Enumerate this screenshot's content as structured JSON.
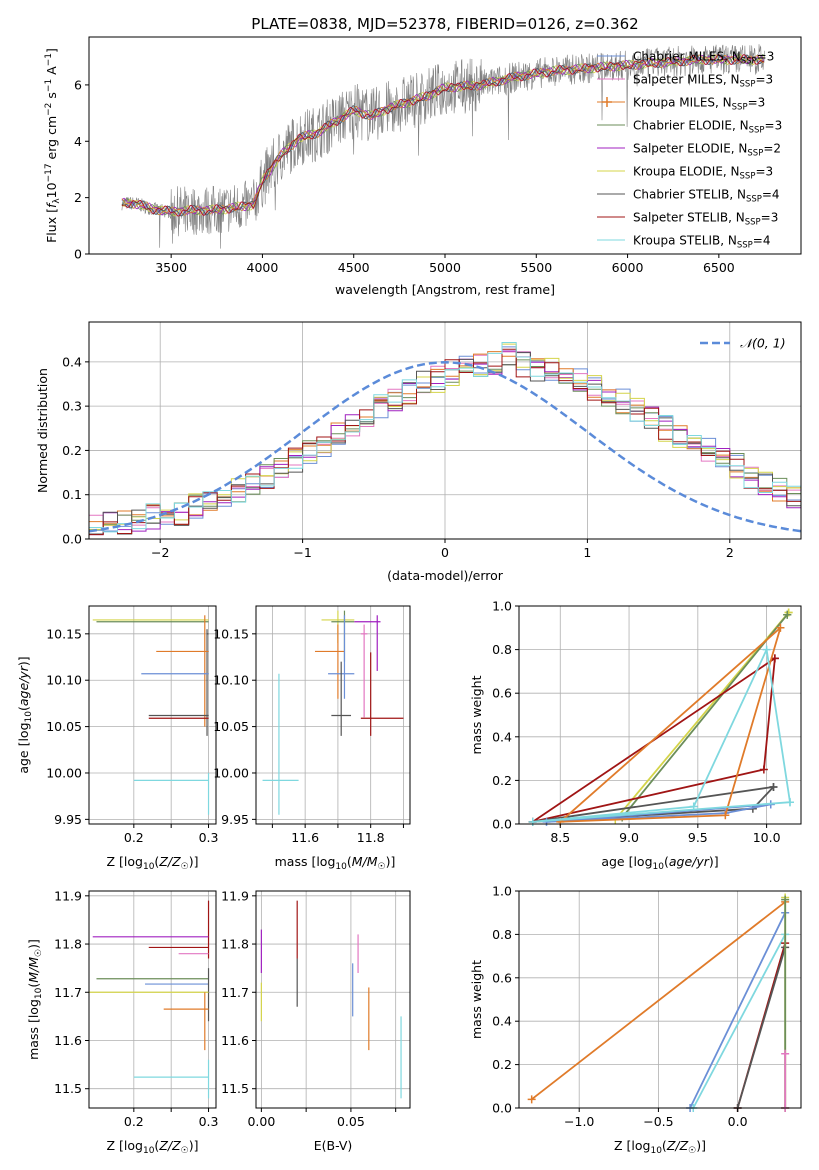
{
  "title": "PLATE=0838, MJD=52378, FIBERID=0126, z=0.362",
  "colors": {
    "chabrier_miles": "#6b8fd6",
    "salpeter_miles": "#e377c2",
    "kroupa_miles": "#e07b2a",
    "chabrier_elodie": "#6b8e5a",
    "salpeter_elodie": "#a020c0",
    "kroupa_elodie": "#d4d44a",
    "chabrier_stelib": "#555555",
    "salpeter_stelib": "#a01515",
    "kroupa_stelib": "#7fd8df",
    "data": "#808080",
    "gaussian": "#5b8bd9"
  },
  "chart_data": [
    {
      "id": "spectrum",
      "type": "line",
      "xlabel": "wavelength [Angstrom, rest frame]",
      "ylabel": "Flux [f_λ 10^-17 erg cm^-2 s^-1 A^-1]",
      "xlim": [
        3050,
        6950
      ],
      "ylim": [
        0,
        7.7
      ],
      "xticks": [
        "3500",
        "4000",
        "4500",
        "5000",
        "5500",
        "6000",
        "6500"
      ],
      "yticks": [
        "0",
        "2",
        "4",
        "6"
      ],
      "legend_position": "top-right",
      "model_continuum": {
        "x": [
          3230,
          3300,
          3400,
          3500,
          3600,
          3700,
          3800,
          3900,
          3950,
          4000,
          4100,
          4200,
          4300,
          4400,
          4500,
          4600,
          4700,
          4800,
          4900,
          5000,
          5200,
          5400,
          5600,
          5800,
          6000,
          6200,
          6400,
          6600,
          6750
        ],
        "y": [
          1.8,
          1.8,
          1.6,
          1.5,
          1.55,
          1.55,
          1.6,
          1.7,
          1.75,
          2.6,
          3.5,
          4.1,
          4.3,
          4.7,
          5.1,
          4.9,
          5.2,
          5.4,
          5.6,
          5.9,
          6.0,
          6.3,
          6.5,
          6.6,
          6.7,
          6.8,
          6.9,
          6.9,
          6.9
        ]
      },
      "legend": [
        {
          "label": "Chabrier MILES, N",
          "sub": "SSP",
          "suffix": "=3",
          "color_key": "chabrier_miles",
          "marker": false
        },
        {
          "label": "Salpeter MILES, N",
          "sub": "SSP",
          "suffix": "=3",
          "color_key": "salpeter_miles",
          "marker": false
        },
        {
          "label": "Kroupa MILES, N",
          "sub": "SSP",
          "suffix": "=3",
          "color_key": "kroupa_miles",
          "marker": true
        },
        {
          "label": "Chabrier ELODIE, N",
          "sub": "SSP",
          "suffix": "=3",
          "color_key": "chabrier_elodie",
          "marker": false
        },
        {
          "label": "Salpeter ELODIE, N",
          "sub": "SSP",
          "suffix": "=2",
          "color_key": "salpeter_elodie",
          "marker": false
        },
        {
          "label": "Kroupa ELODIE, N",
          "sub": "SSP",
          "suffix": "=3",
          "color_key": "kroupa_elodie",
          "marker": false
        },
        {
          "label": "Chabrier STELIB, N",
          "sub": "SSP",
          "suffix": "=4",
          "color_key": "chabrier_stelib",
          "marker": false
        },
        {
          "label": "Salpeter STELIB, N",
          "sub": "SSP",
          "suffix": "=3",
          "color_key": "salpeter_stelib",
          "marker": false
        },
        {
          "label": "Kroupa STELIB, N",
          "sub": "SSP",
          "suffix": "=4",
          "color_key": "kroupa_stelib",
          "marker": false
        }
      ]
    },
    {
      "id": "residuals",
      "type": "histogram",
      "xlabel": "(data-model)/error",
      "ylabel": "Normed distribution",
      "xlim": [
        -2.5,
        2.5
      ],
      "ylim": [
        0,
        0.49
      ],
      "xticks": [
        "−2",
        "−1",
        "0",
        "1",
        "2"
      ],
      "yticks": [
        "0.0",
        "0.1",
        "0.2",
        "0.3",
        "0.4"
      ],
      "grid": true,
      "legend_position": "top-right",
      "legend": "𝒩(0, 1)",
      "bin_width": 0.1,
      "base_density": [
        0.024,
        0.026,
        0.032,
        0.036,
        0.045,
        0.05,
        0.055,
        0.06,
        0.075,
        0.085,
        0.095,
        0.11,
        0.125,
        0.14,
        0.16,
        0.18,
        0.2,
        0.215,
        0.235,
        0.26,
        0.28,
        0.3,
        0.315,
        0.33,
        0.35,
        0.36,
        0.375,
        0.385,
        0.39,
        0.4,
        0.42,
        0.395,
        0.385,
        0.38,
        0.37,
        0.355,
        0.34,
        0.33,
        0.31,
        0.29,
        0.27,
        0.25,
        0.235,
        0.22,
        0.2,
        0.18,
        0.165,
        0.14,
        0.125,
        0.11,
        0.1,
        0.09,
        0.075,
        0.065,
        0.055,
        0.048,
        0.04,
        0.035,
        0.03,
        0.026,
        0.022,
        0.02,
        0.018
      ]
    },
    {
      "id": "age_vs_Z",
      "type": "errorbar",
      "xlabel": "Z [log10(Z/Z☉)]",
      "ylabel": "age  [log10(age/yr)]",
      "xlim": [
        0.14,
        0.31
      ],
      "ylim": [
        9.945,
        10.18
      ],
      "xticks": [
        0.2,
        0.25,
        0.3
      ],
      "xtick_labels": [
        "0.2",
        "",
        "0.3"
      ],
      "yticks": [
        9.95,
        10.0,
        10.05,
        10.1,
        10.15
      ],
      "ytick_labels": [
        "9.95",
        "10.00",
        "10.05",
        "10.10",
        "10.15"
      ],
      "points": [
        {
          "color_key": "kroupa_elodie",
          "x": 0.145,
          "y": 10.165,
          "xl": 0.145,
          "xh": 0.3,
          "yl": 10.165,
          "yh": 10.165
        },
        {
          "color_key": "chabrier_elodie",
          "x": 0.3,
          "y": 10.163,
          "xl": 0.15,
          "xh": 0.3,
          "yl": 10.163,
          "yh": 10.163
        },
        {
          "color_key": "chabrier_stelib",
          "x": 0.298,
          "y": 10.15,
          "xl": 0.298,
          "xh": 0.3,
          "yl": 10.04,
          "yh": 10.155
        },
        {
          "color_key": "kroupa_miles",
          "x": 0.295,
          "y": 10.131,
          "xl": 0.23,
          "xh": 0.3,
          "yl": 10.05,
          "yh": 10.17
        },
        {
          "color_key": "chabrier_miles",
          "x": 0.3,
          "y": 10.107,
          "xl": 0.21,
          "xh": 0.3,
          "yl": 10.107,
          "yh": 10.107
        },
        {
          "color_key": "chabrier_stelib",
          "x": 0.3,
          "y": 10.062,
          "xl": 0.22,
          "xh": 0.3,
          "yl": 10.062,
          "yh": 10.062
        },
        {
          "color_key": "salpeter_stelib",
          "x": 0.3,
          "y": 10.059,
          "xl": 0.22,
          "xh": 0.3,
          "yl": 10.059,
          "yh": 10.059
        },
        {
          "color_key": "kroupa_stelib",
          "x": 0.3,
          "y": 9.992,
          "xl": 0.2,
          "xh": 0.3,
          "yl": 9.955,
          "yh": 10.0
        }
      ]
    },
    {
      "id": "age_vs_mass",
      "type": "errorbar",
      "xlabel": "mass [log10(M/M☉)]",
      "ylabel": "",
      "xlim": [
        11.45,
        11.92
      ],
      "ylim": [
        9.945,
        10.18
      ],
      "xticks": [
        11.5,
        11.6,
        11.7,
        11.8,
        11.9
      ],
      "xtick_labels": [
        "",
        "11.6",
        "",
        "11.8",
        ""
      ],
      "yticks": [
        9.95,
        10.0,
        10.05,
        10.1,
        10.15
      ],
      "ytick_labels": [
        "9.95",
        "10.00",
        "10.05",
        "10.10",
        "10.15"
      ],
      "points": [
        {
          "color_key": "kroupa_elodie",
          "x": 11.7,
          "y": 10.165,
          "xl": 11.65,
          "xh": 11.75,
          "yl": 10.14,
          "yh": 10.175
        },
        {
          "color_key": "chabrier_elodie",
          "x": 11.72,
          "y": 10.163,
          "xl": 11.68,
          "xh": 11.75,
          "yl": 10.12,
          "yh": 10.175
        },
        {
          "color_key": "salpeter_elodie",
          "x": 11.82,
          "y": 10.163,
          "xl": 11.75,
          "xh": 11.83,
          "yl": 10.11,
          "yh": 10.17
        },
        {
          "color_key": "salpeter_miles",
          "x": 11.78,
          "y": 10.15,
          "xl": 11.77,
          "xh": 11.79,
          "yl": 10.06,
          "yh": 10.16
        },
        {
          "color_key": "kroupa_miles",
          "x": 11.7,
          "y": 10.131,
          "xl": 11.63,
          "xh": 11.72,
          "yl": 10.08,
          "yh": 10.16
        },
        {
          "color_key": "chabrier_miles",
          "x": 11.72,
          "y": 10.107,
          "xl": 11.67,
          "xh": 11.75,
          "yl": 10.08,
          "yh": 10.17
        },
        {
          "color_key": "chabrier_stelib",
          "x": 11.71,
          "y": 10.062,
          "xl": 11.68,
          "xh": 11.74,
          "yl": 10.04,
          "yh": 10.12
        },
        {
          "color_key": "salpeter_stelib",
          "x": 11.8,
          "y": 10.059,
          "xl": 11.77,
          "xh": 11.9,
          "yl": 10.04,
          "yh": 10.13
        },
        {
          "color_key": "kroupa_stelib",
          "x": 11.52,
          "y": 9.992,
          "xl": 11.47,
          "xh": 11.58,
          "yl": 9.955,
          "yh": 10.107
        }
      ]
    },
    {
      "id": "weight_vs_age",
      "type": "line",
      "xlabel": "age  [log10(age/yr)]",
      "ylabel": "mass weight",
      "xlim": [
        8.2,
        10.25
      ],
      "ylim": [
        0,
        1.0
      ],
      "xticks": [
        8.5,
        9.0,
        9.5,
        10.0
      ],
      "xtick_labels": [
        "8.5",
        "9.0",
        "9.5",
        "10.0"
      ],
      "yticks": [
        0,
        0.2,
        0.4,
        0.6,
        0.8,
        1.0
      ],
      "ytick_labels": [
        "0.0",
        "0.2",
        "0.4",
        "0.6",
        "0.8",
        "1.0"
      ],
      "grid": true,
      "series": [
        {
          "color_key": "kroupa_elodie",
          "x": [
            10.16,
            8.9,
            10.16
          ],
          "y": [
            0.97,
            0.02,
            0.97
          ]
        },
        {
          "color_key": "chabrier_elodie",
          "x": [
            10.15,
            8.95,
            10.15
          ],
          "y": [
            0.96,
            0.03,
            0.96
          ]
        },
        {
          "color_key": "salpeter_stelib",
          "x": [
            10.06,
            9.98,
            8.3,
            10.06
          ],
          "y": [
            0.76,
            0.25,
            0.01,
            0.76
          ]
        },
        {
          "color_key": "chabrier_stelib",
          "x": [
            10.05,
            9.9,
            8.3,
            10.05
          ],
          "y": [
            0.17,
            0.07,
            0.01,
            0.17
          ]
        },
        {
          "color_key": "chabrier_miles",
          "x": [
            10.03,
            9.7,
            8.4,
            10.03
          ],
          "y": [
            0.09,
            0.05,
            0.01,
            0.09
          ]
        },
        {
          "color_key": "kroupa_miles",
          "x": [
            10.1,
            9.7,
            8.5,
            10.1
          ],
          "y": [
            0.9,
            0.04,
            0.01,
            0.9
          ]
        },
        {
          "color_key": "kroupa_stelib",
          "x": [
            10.17,
            10.0,
            9.47,
            8.3,
            10.17
          ],
          "y": [
            0.1,
            0.8,
            0.08,
            0.01,
            0.1
          ]
        }
      ]
    },
    {
      "id": "mass_vs_Z",
      "type": "errorbar",
      "xlabel": "Z [log10(Z/Z☉)]",
      "ylabel": "mass [log10(M/M☉)]",
      "xlim": [
        0.14,
        0.31
      ],
      "ylim": [
        11.46,
        11.91
      ],
      "xticks": [
        0.2,
        0.25,
        0.3
      ],
      "xtick_labels": [
        "0.2",
        "",
        "0.3"
      ],
      "yticks": [
        11.5,
        11.6,
        11.7,
        11.8,
        11.9
      ],
      "ytick_labels": [
        "11.5",
        "11.6",
        "11.7",
        "11.8",
        "11.9"
      ],
      "points": [
        {
          "color_key": "salpeter_stelib",
          "x": 0.3,
          "y": 11.84,
          "xl": 0.3,
          "xh": 0.3,
          "yl": 11.77,
          "yh": 11.89
        },
        {
          "color_key": "salpeter_elodie",
          "x": 0.3,
          "y": 11.815,
          "xl": 0.145,
          "xh": 0.3,
          "yl": 11.815,
          "yh": 11.815
        },
        {
          "color_key": "salpeter_stelib",
          "x": 0.3,
          "y": 11.793,
          "xl": 0.22,
          "xh": 0.3,
          "yl": 11.793,
          "yh": 11.793
        },
        {
          "color_key": "salpeter_miles",
          "x": 0.3,
          "y": 11.78,
          "xl": 0.26,
          "xh": 0.3,
          "yl": 11.78,
          "yh": 11.78
        },
        {
          "color_key": "chabrier_elodie",
          "x": 0.3,
          "y": 11.728,
          "xl": 0.15,
          "xh": 0.3,
          "yl": 11.728,
          "yh": 11.728
        },
        {
          "color_key": "chabrier_miles",
          "x": 0.3,
          "y": 11.717,
          "xl": 0.215,
          "xh": 0.3,
          "yl": 11.717,
          "yh": 11.717
        },
        {
          "color_key": "chabrier_stelib",
          "x": 0.3,
          "y": 11.71,
          "xl": 0.3,
          "xh": 0.3,
          "yl": 11.64,
          "yh": 11.75
        },
        {
          "color_key": "kroupa_elodie",
          "x": 0.3,
          "y": 11.7,
          "xl": 0.14,
          "xh": 0.3,
          "yl": 11.7,
          "yh": 11.7
        },
        {
          "color_key": "kroupa_miles",
          "x": 0.295,
          "y": 11.665,
          "xl": 0.24,
          "xh": 0.3,
          "yl": 11.58,
          "yh": 11.7
        },
        {
          "color_key": "kroupa_stelib",
          "x": 0.3,
          "y": 11.524,
          "xl": 0.2,
          "xh": 0.3,
          "yl": 11.48,
          "yh": 11.56
        }
      ]
    },
    {
      "id": "mass_vs_ebv",
      "type": "errorbar",
      "xlabel": "E(B-V)",
      "ylabel": "",
      "xlim": [
        -0.003,
        0.083
      ],
      "ylim": [
        11.46,
        11.91
      ],
      "xticks": [
        0,
        0.025,
        0.05,
        0.075
      ],
      "xtick_labels": [
        "0.00",
        "",
        "0.05",
        ""
      ],
      "yticks": [
        11.5,
        11.6,
        11.7,
        11.8,
        11.9
      ],
      "ytick_labels": [
        "11.5",
        "11.6",
        "11.7",
        "11.8",
        "11.9"
      ],
      "points": [
        {
          "color_key": "salpeter_elodie",
          "x": 0.0,
          "y": 11.79,
          "xl": 0.0,
          "xh": 0.0,
          "yl": 11.74,
          "yh": 11.83
        },
        {
          "color_key": "kroupa_elodie",
          "x": 0.0,
          "y": 11.69,
          "xl": 0.0,
          "xh": 0.0,
          "yl": 11.64,
          "yh": 11.72
        },
        {
          "color_key": "salpeter_stelib",
          "x": 0.02,
          "y": 11.84,
          "xl": 0.02,
          "xh": 0.02,
          "yl": 11.77,
          "yh": 11.89
        },
        {
          "color_key": "chabrier_stelib",
          "x": 0.02,
          "y": 11.72,
          "xl": 0.02,
          "xh": 0.02,
          "yl": 11.67,
          "yh": 11.77
        },
        {
          "color_key": "salpeter_miles",
          "x": 0.054,
          "y": 11.78,
          "xl": 0.054,
          "xh": 0.054,
          "yl": 11.74,
          "yh": 11.82
        },
        {
          "color_key": "chabrier_miles",
          "x": 0.051,
          "y": 11.71,
          "xl": 0.051,
          "xh": 0.051,
          "yl": 11.65,
          "yh": 11.76
        },
        {
          "color_key": "kroupa_miles",
          "x": 0.06,
          "y": 11.66,
          "xl": 0.06,
          "xh": 0.06,
          "yl": 11.58,
          "yh": 11.71
        },
        {
          "color_key": "kroupa_stelib",
          "x": 0.078,
          "y": 11.56,
          "xl": 0.078,
          "xh": 0.078,
          "yl": 11.48,
          "yh": 11.65
        }
      ]
    },
    {
      "id": "weight_vs_Z",
      "type": "line",
      "xlabel": "Z [log10(Z/Z☉)]",
      "ylabel": "mass weight",
      "xlim": [
        -1.38,
        0.4
      ],
      "ylim": [
        0,
        1.0
      ],
      "xticks": [
        -1.0,
        -0.5,
        0.0
      ],
      "xtick_labels": [
        "−1.0",
        "−0.5",
        "0.0"
      ],
      "yticks": [
        0,
        0.2,
        0.4,
        0.6,
        0.8,
        1.0
      ],
      "ytick_labels": [
        "0.0",
        "0.2",
        "0.4",
        "0.6",
        "0.8",
        "1.0"
      ],
      "grid": true,
      "series": [
        {
          "color_key": "kroupa_miles",
          "x": [
            -1.3,
            0.3
          ],
          "y": [
            0.04,
            0.95
          ]
        },
        {
          "color_key": "chabrier_miles",
          "x": [
            -0.3,
            0.3
          ],
          "y": [
            0.0,
            0.9
          ]
        },
        {
          "color_key": "kroupa_stelib",
          "x": [
            -0.28,
            0.3
          ],
          "y": [
            0.0,
            0.8
          ]
        },
        {
          "color_key": "salpeter_stelib",
          "x": [
            0.0,
            0.3
          ],
          "y": [
            0.0,
            0.76
          ]
        },
        {
          "color_key": "chabrier_stelib",
          "x": [
            0.0,
            0.3
          ],
          "y": [
            0.0,
            0.74
          ]
        },
        {
          "color_key": "kroupa_elodie",
          "x": [
            0.3,
            0.3
          ],
          "y": [
            0.0,
            0.97
          ]
        },
        {
          "color_key": "chabrier_elodie",
          "x": [
            0.3,
            0.3
          ],
          "y": [
            0.0,
            0.96
          ]
        },
        {
          "color_key": "salpeter_miles",
          "x": [
            0.3,
            0.3
          ],
          "y": [
            0.0,
            0.25
          ]
        }
      ]
    }
  ]
}
